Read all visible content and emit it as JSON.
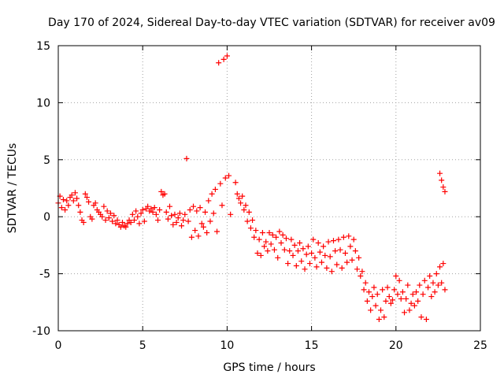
{
  "chart_data": {
    "type": "scatter",
    "title": "Day 170 of 2024, Sidereal Day-to-day VTEC variation (SDTVAR) for receiver av09",
    "xlabel": "GPS time / hours",
    "ylabel": "SDTVAR / TECUs",
    "xlim": [
      0,
      25
    ],
    "ylim": [
      -10,
      15
    ],
    "xticks": [
      "0",
      "5",
      "10",
      "15",
      "20",
      "25"
    ],
    "yticks": [
      "-10",
      "-5",
      "0",
      "5",
      "10",
      "15"
    ],
    "grid": true,
    "marker": "+",
    "series": [
      {
        "name": "SDTVAR",
        "color": "#ff0000",
        "points": [
          [
            0.0,
            1.2
          ],
          [
            0.1,
            1.8
          ],
          [
            0.2,
            0.8
          ],
          [
            0.3,
            1.5
          ],
          [
            0.4,
            0.6
          ],
          [
            0.5,
            1.4
          ],
          [
            0.6,
            1.0
          ],
          [
            0.7,
            1.7
          ],
          [
            0.8,
            1.9
          ],
          [
            0.9,
            1.4
          ],
          [
            1.0,
            2.1
          ],
          [
            1.1,
            1.6
          ],
          [
            1.2,
            1.0
          ],
          [
            1.3,
            0.4
          ],
          [
            1.4,
            -0.3
          ],
          [
            1.5,
            -0.5
          ],
          [
            1.6,
            2.0
          ],
          [
            1.7,
            1.7
          ],
          [
            1.8,
            1.3
          ],
          [
            1.9,
            0.0
          ],
          [
            2.0,
            -0.2
          ],
          [
            2.1,
            1.0
          ],
          [
            2.2,
            1.2
          ],
          [
            2.3,
            0.6
          ],
          [
            2.4,
            0.4
          ],
          [
            2.5,
            0.2
          ],
          [
            2.6,
            0.0
          ],
          [
            2.7,
            0.9
          ],
          [
            2.8,
            -0.3
          ],
          [
            2.9,
            0.5
          ],
          [
            3.0,
            -0.1
          ],
          [
            3.1,
            0.3
          ],
          [
            3.2,
            -0.4
          ],
          [
            3.3,
            0.1
          ],
          [
            3.4,
            -0.6
          ],
          [
            3.5,
            -0.3
          ],
          [
            3.6,
            -0.7
          ],
          [
            3.7,
            -0.9
          ],
          [
            3.8,
            -0.5
          ],
          [
            3.9,
            -0.8
          ],
          [
            4.0,
            -0.9
          ],
          [
            4.1,
            -0.6
          ],
          [
            4.2,
            -0.3
          ],
          [
            4.3,
            -0.5
          ],
          [
            4.4,
            0.2
          ],
          [
            4.5,
            -0.3
          ],
          [
            4.6,
            0.5
          ],
          [
            4.7,
            0.0
          ],
          [
            4.8,
            -0.6
          ],
          [
            4.9,
            0.3
          ],
          [
            5.0,
            0.6
          ],
          [
            5.1,
            -0.4
          ],
          [
            5.2,
            0.7
          ],
          [
            5.3,
            0.9
          ],
          [
            5.4,
            0.5
          ],
          [
            5.5,
            0.7
          ],
          [
            5.6,
            0.4
          ],
          [
            5.7,
            0.8
          ],
          [
            5.8,
            0.2
          ],
          [
            5.9,
            -0.3
          ],
          [
            6.0,
            0.6
          ],
          [
            6.1,
            2.2
          ],
          [
            6.2,
            1.9
          ],
          [
            6.3,
            2.0
          ],
          [
            6.4,
            0.4
          ],
          [
            6.5,
            -0.2
          ],
          [
            6.6,
            0.9
          ],
          [
            6.7,
            0.1
          ],
          [
            6.8,
            -0.7
          ],
          [
            6.9,
            0.2
          ],
          [
            7.0,
            -0.5
          ],
          [
            7.1,
            -0.1
          ],
          [
            7.2,
            0.3
          ],
          [
            7.3,
            -0.8
          ],
          [
            7.4,
            -0.3
          ],
          [
            7.5,
            0.2
          ],
          [
            7.6,
            5.1
          ],
          [
            7.7,
            -0.4
          ],
          [
            7.8,
            0.6
          ],
          [
            7.9,
            -1.8
          ],
          [
            8.0,
            0.9
          ],
          [
            8.1,
            -1.2
          ],
          [
            8.2,
            0.5
          ],
          [
            8.3,
            -1.7
          ],
          [
            8.4,
            0.8
          ],
          [
            8.5,
            -0.6
          ],
          [
            8.6,
            -0.9
          ],
          [
            8.7,
            0.4
          ],
          [
            8.8,
            -1.4
          ],
          [
            8.9,
            1.4
          ],
          [
            9.0,
            -0.4
          ],
          [
            9.1,
            2.0
          ],
          [
            9.2,
            0.3
          ],
          [
            9.3,
            2.4
          ],
          [
            9.4,
            -1.3
          ],
          [
            9.5,
            13.5
          ],
          [
            9.6,
            2.9
          ],
          [
            9.7,
            1.0
          ],
          [
            9.8,
            13.8
          ],
          [
            9.9,
            3.4
          ],
          [
            10.0,
            14.1
          ],
          [
            10.1,
            3.6
          ],
          [
            10.2,
            0.2
          ],
          [
            10.5,
            3.0
          ],
          [
            10.6,
            2.0
          ],
          [
            10.7,
            1.6
          ],
          [
            10.8,
            1.2
          ],
          [
            10.9,
            1.8
          ],
          [
            11.0,
            0.6
          ],
          [
            11.1,
            1.0
          ],
          [
            11.2,
            -0.4
          ],
          [
            11.3,
            0.4
          ],
          [
            11.4,
            -1.0
          ],
          [
            11.5,
            -0.3
          ],
          [
            11.6,
            -1.8
          ],
          [
            11.7,
            -1.2
          ],
          [
            11.8,
            -3.2
          ],
          [
            11.9,
            -2.0
          ],
          [
            12.0,
            -3.4
          ],
          [
            12.1,
            -1.4
          ],
          [
            12.2,
            -2.6
          ],
          [
            12.3,
            -2.2
          ],
          [
            12.4,
            -3.0
          ],
          [
            12.5,
            -1.4
          ],
          [
            12.6,
            -2.4
          ],
          [
            12.7,
            -1.6
          ],
          [
            12.8,
            -2.9
          ],
          [
            12.9,
            -1.8
          ],
          [
            13.0,
            -3.6
          ],
          [
            13.1,
            -1.3
          ],
          [
            13.2,
            -2.3
          ],
          [
            13.3,
            -1.6
          ],
          [
            13.4,
            -2.9
          ],
          [
            13.5,
            -1.9
          ],
          [
            13.6,
            -4.1
          ],
          [
            13.7,
            -3.0
          ],
          [
            13.8,
            -2.0
          ],
          [
            13.9,
            -3.4
          ],
          [
            14.0,
            -2.5
          ],
          [
            14.1,
            -4.3
          ],
          [
            14.2,
            -3.0
          ],
          [
            14.3,
            -2.3
          ],
          [
            14.4,
            -3.9
          ],
          [
            14.5,
            -2.8
          ],
          [
            14.6,
            -4.6
          ],
          [
            14.7,
            -3.3
          ],
          [
            14.8,
            -2.6
          ],
          [
            14.9,
            -4.1
          ],
          [
            15.0,
            -3.2
          ],
          [
            15.1,
            -2.0
          ],
          [
            15.2,
            -3.6
          ],
          [
            15.3,
            -4.4
          ],
          [
            15.4,
            -2.3
          ],
          [
            15.5,
            -3.1
          ],
          [
            15.6,
            -4.0
          ],
          [
            15.7,
            -2.6
          ],
          [
            15.8,
            -3.4
          ],
          [
            15.9,
            -4.5
          ],
          [
            16.0,
            -2.2
          ],
          [
            16.1,
            -3.5
          ],
          [
            16.2,
            -4.8
          ],
          [
            16.3,
            -2.1
          ],
          [
            16.4,
            -3.0
          ],
          [
            16.5,
            -4.2
          ],
          [
            16.6,
            -2.0
          ],
          [
            16.7,
            -2.9
          ],
          [
            16.8,
            -4.5
          ],
          [
            16.9,
            -1.8
          ],
          [
            17.0,
            -3.2
          ],
          [
            17.1,
            -4.0
          ],
          [
            17.2,
            -1.7
          ],
          [
            17.3,
            -2.6
          ],
          [
            17.4,
            -3.8
          ],
          [
            17.5,
            -2.0
          ],
          [
            17.6,
            -3.0
          ],
          [
            17.7,
            -4.6
          ],
          [
            17.8,
            -3.6
          ],
          [
            17.9,
            -5.2
          ],
          [
            18.0,
            -4.8
          ],
          [
            18.1,
            -6.4
          ],
          [
            18.2,
            -5.8
          ],
          [
            18.3,
            -7.4
          ],
          [
            18.4,
            -6.6
          ],
          [
            18.5,
            -8.2
          ],
          [
            18.6,
            -7.0
          ],
          [
            18.7,
            -6.2
          ],
          [
            18.8,
            -7.8
          ],
          [
            18.9,
            -6.8
          ],
          [
            19.0,
            -9.0
          ],
          [
            19.1,
            -8.2
          ],
          [
            19.2,
            -6.4
          ],
          [
            19.3,
            -8.8
          ],
          [
            19.4,
            -7.4
          ],
          [
            19.5,
            -6.2
          ],
          [
            19.6,
            -7.0
          ],
          [
            19.7,
            -7.6
          ],
          [
            19.8,
            -7.3
          ],
          [
            19.9,
            -6.4
          ],
          [
            20.0,
            -5.2
          ],
          [
            20.1,
            -6.8
          ],
          [
            20.2,
            -5.6
          ],
          [
            20.3,
            -7.2
          ],
          [
            20.4,
            -6.6
          ],
          [
            20.5,
            -8.4
          ],
          [
            20.6,
            -7.2
          ],
          [
            20.7,
            -6.0
          ],
          [
            20.8,
            -8.2
          ],
          [
            20.9,
            -7.6
          ],
          [
            21.0,
            -6.8
          ],
          [
            21.1,
            -7.8
          ],
          [
            21.2,
            -6.6
          ],
          [
            21.3,
            -7.4
          ],
          [
            21.4,
            -6.0
          ],
          [
            21.5,
            -8.8
          ],
          [
            21.6,
            -6.8
          ],
          [
            21.7,
            -5.6
          ],
          [
            21.8,
            -9.0
          ],
          [
            21.9,
            -6.2
          ],
          [
            22.0,
            -5.2
          ],
          [
            22.1,
            -7.0
          ],
          [
            22.2,
            -5.8
          ],
          [
            22.3,
            -6.6
          ],
          [
            22.4,
            -5.0
          ],
          [
            22.5,
            -6.0
          ],
          [
            22.6,
            3.8
          ],
          [
            22.6,
            -4.4
          ],
          [
            22.7,
            3.2
          ],
          [
            22.7,
            -5.8
          ],
          [
            22.8,
            2.6
          ],
          [
            22.8,
            -4.1
          ],
          [
            22.9,
            2.2
          ],
          [
            22.9,
            -6.4
          ]
        ]
      }
    ]
  }
}
